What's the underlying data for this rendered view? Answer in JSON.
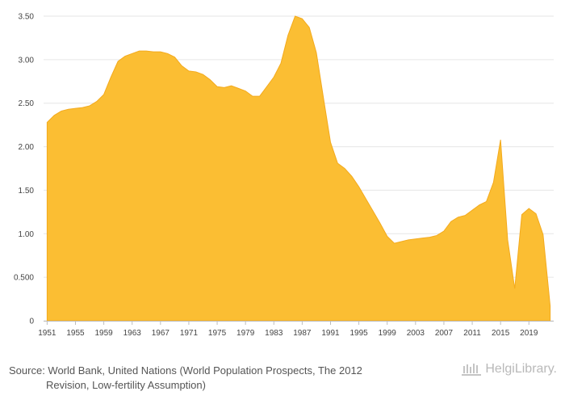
{
  "chart_data": {
    "type": "area",
    "title": "",
    "xlabel": "",
    "ylabel": "",
    "ylim": [
      0,
      3.5
    ],
    "y_ticks": [
      0,
      0.5,
      1,
      1.5,
      2,
      2.5,
      3,
      3.5
    ],
    "y_tick_labels": [
      "0",
      "0.500",
      "1.00",
      "1.50",
      "2.00",
      "2.50",
      "3.00",
      "3.50"
    ],
    "x_ticks": [
      1951,
      1955,
      1959,
      1963,
      1967,
      1971,
      1975,
      1979,
      1983,
      1987,
      1991,
      1995,
      1999,
      2003,
      2007,
      2011,
      2015,
      2019
    ],
    "fill_color": "#fbbe33",
    "edge_color": "#f3aa1d",
    "series": [
      {
        "name": "value",
        "x": [
          1951,
          1952,
          1953,
          1954,
          1955,
          1956,
          1957,
          1958,
          1959,
          1960,
          1961,
          1962,
          1963,
          1964,
          1965,
          1966,
          1967,
          1968,
          1969,
          1970,
          1971,
          1972,
          1973,
          1974,
          1975,
          1976,
          1977,
          1978,
          1979,
          1980,
          1981,
          1982,
          1983,
          1984,
          1985,
          1986,
          1987,
          1988,
          1989,
          1990,
          1991,
          1992,
          1993,
          1994,
          1995,
          1996,
          1997,
          1998,
          1999,
          2000,
          2001,
          2002,
          2003,
          2004,
          2005,
          2006,
          2007,
          2008,
          2009,
          2010,
          2011,
          2012,
          2013,
          2014,
          2015,
          2016,
          2017,
          2018,
          2019,
          2020,
          2021,
          2022
        ],
        "values": [
          2.28,
          2.36,
          2.41,
          2.43,
          2.44,
          2.45,
          2.47,
          2.52,
          2.6,
          2.8,
          2.98,
          3.04,
          3.07,
          3.1,
          3.1,
          3.09,
          3.09,
          3.07,
          3.03,
          2.93,
          2.87,
          2.86,
          2.83,
          2.77,
          2.69,
          2.68,
          2.7,
          2.67,
          2.64,
          2.58,
          2.58,
          2.69,
          2.8,
          2.96,
          3.28,
          3.5,
          3.47,
          3.37,
          3.08,
          2.56,
          2.05,
          1.81,
          1.75,
          1.66,
          1.54,
          1.4,
          1.26,
          1.12,
          0.97,
          0.89,
          0.91,
          0.93,
          0.94,
          0.95,
          0.96,
          0.98,
          1.03,
          1.14,
          1.19,
          1.21,
          1.27,
          1.33,
          1.37,
          1.59,
          2.08,
          0.93,
          0.37,
          1.22,
          1.29,
          1.23,
          0.99,
          0.17
        ]
      }
    ]
  },
  "footer": {
    "source_line1": "Source: World Bank, United Nations (World Population Prospects, The 2012",
    "source_line2": "Revision, Low-fertility Assumption)",
    "brand": "HelgiLibrary."
  }
}
